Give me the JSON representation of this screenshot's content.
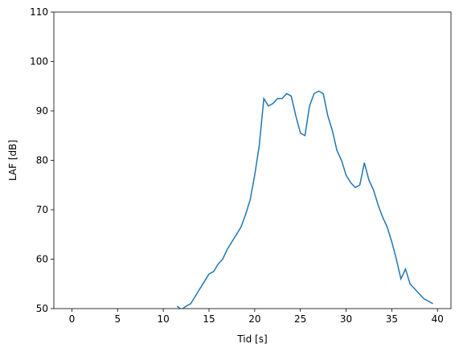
{
  "chart_data": {
    "type": "line",
    "x_label": "Tid [s]",
    "y_label": "LAF [dB]",
    "x": [
      11.5,
      12,
      12.5,
      13,
      13.5,
      14,
      14.5,
      15,
      15.5,
      16,
      16.5,
      17,
      17.5,
      18,
      18.5,
      19,
      19.5,
      20,
      20.5,
      21,
      21.5,
      22,
      22.5,
      23,
      23.5,
      24,
      24.5,
      25,
      25.5,
      26,
      26.5,
      27,
      27.5,
      28,
      28.5,
      29,
      29.5,
      30,
      30.5,
      31,
      31.5,
      32,
      32.5,
      33,
      33.5,
      34,
      34.5,
      35,
      35.5,
      36,
      36.5,
      37,
      37.5,
      38,
      38.5,
      39,
      39.5
    ],
    "series": [
      {
        "color": "#1f77b4",
        "values": [
          50.5,
          49.8,
          50.5,
          51,
          52.5,
          54,
          55.5,
          57,
          57.5,
          59,
          60,
          62,
          63.5,
          65,
          66.5,
          69,
          72,
          77,
          83,
          92.5,
          91,
          91.5,
          92.5,
          92.5,
          93.5,
          93,
          89,
          85.5,
          85,
          91,
          93.5,
          94,
          93.5,
          89,
          86,
          82,
          80,
          77,
          75.5,
          74.5,
          75,
          79.5,
          76,
          74,
          71,
          68.5,
          66.5,
          63.5,
          60,
          56,
          58,
          55,
          54,
          53,
          52,
          51.5,
          51
        ]
      }
    ],
    "xlim": [
      -1.975,
      41.475
    ],
    "ylim": [
      50,
      110
    ],
    "xticks": [
      0,
      5,
      10,
      15,
      20,
      25,
      30,
      35,
      40
    ],
    "yticks": [
      50,
      60,
      70,
      80,
      90,
      100,
      110
    ]
  }
}
